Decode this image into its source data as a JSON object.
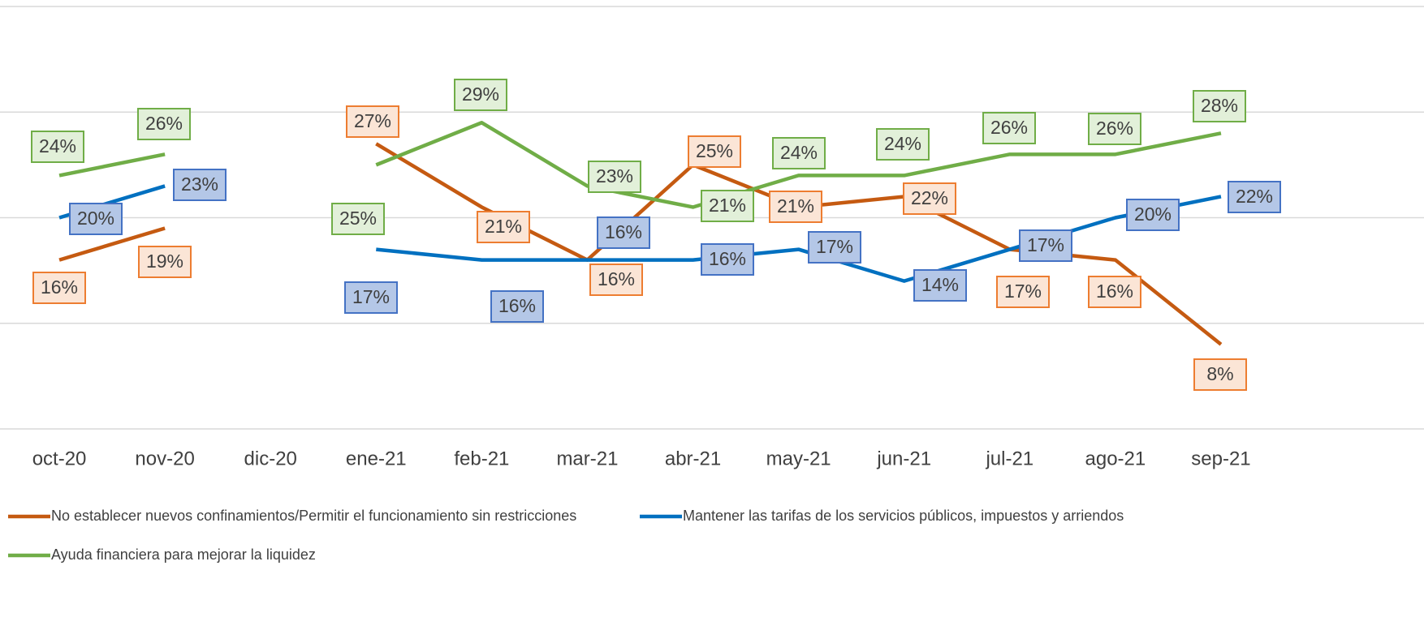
{
  "chart_data": {
    "type": "line",
    "categories": [
      "oct-20",
      "nov-20",
      "dic-20",
      "ene-21",
      "feb-21",
      "mar-21",
      "abr-21",
      "may-21",
      "jun-21",
      "jul-21",
      "ago-21",
      "sep-21"
    ],
    "series": [
      {
        "name": "No establecer nuevos confinamientos/Permitir el funcionamiento sin restricciones",
        "color": "#c55a11",
        "values": [
          16,
          19,
          null,
          27,
          21,
          16,
          25,
          21,
          22,
          17,
          16,
          8
        ],
        "value_labels": [
          "16%",
          "19%",
          null,
          "27%",
          "21%",
          "16%",
          "25%",
          "21%",
          "22%",
          "17%",
          "16%",
          "8%"
        ]
      },
      {
        "name": "Mantener las tarifas de los servicios públicos, impuestos y arriendos",
        "color": "#0070c0",
        "values": [
          20,
          23,
          null,
          17,
          16,
          16,
          16,
          17,
          14,
          17,
          20,
          22
        ],
        "value_labels": [
          "20%",
          "23%",
          null,
          "17%",
          "16%",
          "16%",
          "16%",
          "17%",
          "14%",
          "17%",
          "20%",
          "22%"
        ]
      },
      {
        "name": "Ayuda financiera para mejorar la liquidez",
        "color": "#70ad47",
        "values": [
          24,
          26,
          null,
          25,
          29,
          23,
          21,
          24,
          24,
          26,
          26,
          28
        ],
        "value_labels": [
          "24%",
          "26%",
          null,
          "25%",
          "29%",
          "23%",
          "21%",
          "24%",
          "24%",
          "26%",
          "26%",
          "28%"
        ]
      }
    ],
    "ylim": [
      0,
      40
    ],
    "yticks": [
      0,
      10,
      20,
      30,
      40
    ],
    "grid": true,
    "legend": "bottom"
  }
}
